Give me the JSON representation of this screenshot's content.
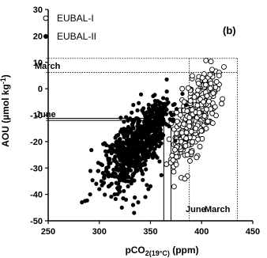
{
  "chart_data": {
    "type": "scatter",
    "panel_label": "(b)",
    "xlabel_main": "pCO",
    "xlabel_sub": "2(19°C)",
    "xlabel_unit": " (ppm)",
    "ylabel_main": "AOU (µmol kg",
    "ylabel_sup": "-1",
    "ylabel_close": ")",
    "xlim": [
      250,
      450
    ],
    "ylim": [
      -50,
      30
    ],
    "xticks": [
      250,
      300,
      350,
      400,
      450
    ],
    "yticks": [
      -50,
      -40,
      -30,
      -20,
      -10,
      0,
      10,
      20,
      30
    ],
    "legend": [
      {
        "label": "EUBAL-I",
        "marker": "open-circle"
      },
      {
        "label": "EUBAL-II",
        "marker": "filled-circle"
      }
    ],
    "annotations": {
      "march_top": "March",
      "june_left": "June",
      "june_bottom": "June",
      "march_bottom": "March"
    },
    "reference_lines": {
      "march_box": {
        "x": [
          248,
          435
        ],
        "y": [
          11.5,
          6.2
        ]
      },
      "march_x": [
        388,
        435
      ],
      "june_box": {
        "x": [
          248,
          363
        ],
        "y": [
          -11.2,
          -12.0
        ]
      },
      "june_x": [
        363,
        370
      ]
    },
    "series": [
      {
        "name": "EUBAL-I",
        "marker": "open",
        "clusters": [
          {
            "cx": 392,
            "cy": -12,
            "sx": 10,
            "sy": 6,
            "n": 260
          },
          {
            "cx": 400,
            "cy": -3,
            "sx": 8,
            "sy": 5,
            "n": 90
          },
          {
            "cx": 380,
            "cy": -22,
            "sx": 5,
            "sy": 3,
            "n": 25
          }
        ],
        "points": [
          [
            417,
            5
          ],
          [
            409,
            2
          ],
          [
            404,
            1.5
          ],
          [
            386,
            -25
          ],
          [
            390,
            -24
          ],
          [
            376,
            -20
          ],
          [
            381,
            0
          ],
          [
            383,
            -5
          ],
          [
            395,
            -26
          ]
        ]
      },
      {
        "name": "EUBAL-II",
        "marker": "filled",
        "clusters": [
          {
            "cx": 340,
            "cy": -20,
            "sx": 14,
            "sy": 6,
            "n": 420
          },
          {
            "cx": 352,
            "cy": -13,
            "sx": 7,
            "sy": 4,
            "n": 160
          },
          {
            "cx": 323,
            "cy": -25,
            "sx": 11,
            "sy": 5,
            "n": 160
          },
          {
            "cx": 330,
            "cy": -31,
            "sx": 6,
            "sy": 4,
            "n": 35
          }
        ],
        "points": [
          [
            283,
            -43
          ],
          [
            286,
            -42.5
          ],
          [
            288,
            -42.3
          ],
          [
            291,
            -40
          ],
          [
            297,
            -36
          ],
          [
            300,
            -38
          ],
          [
            302,
            -35
          ],
          [
            305,
            -33
          ],
          [
            312,
            -36
          ],
          [
            315,
            -40
          ],
          [
            320,
            -39
          ],
          [
            322,
            -45
          ],
          [
            334,
            -47
          ],
          [
            338,
            -43
          ],
          [
            345,
            -41
          ],
          [
            348,
            -38
          ],
          [
            355,
            -6.5
          ],
          [
            353,
            -7
          ],
          [
            356,
            -9
          ],
          [
            333,
            -44
          ],
          [
            326,
            -42
          ],
          [
            309,
            -37
          ],
          [
            307,
            -30
          ]
        ]
      }
    ]
  }
}
